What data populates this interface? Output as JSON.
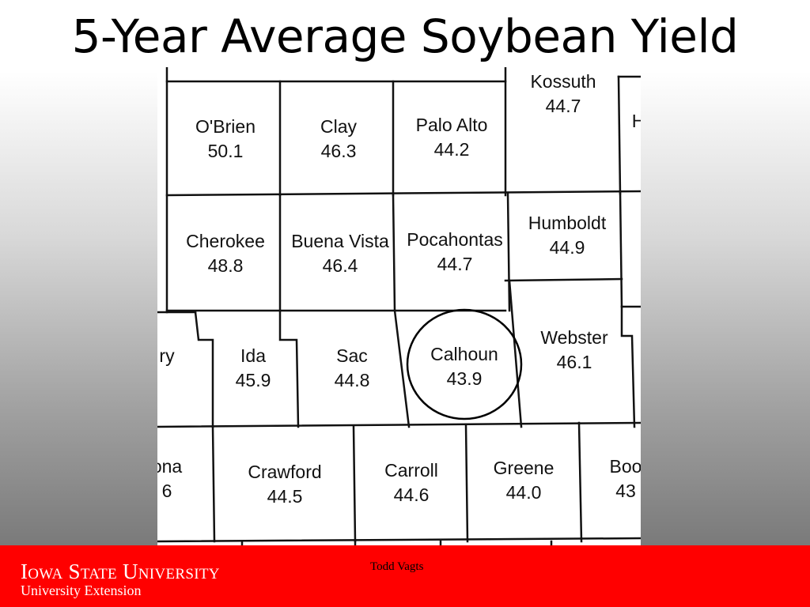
{
  "slide": {
    "title": "5-Year Average Soybean Yield",
    "author": "Todd Vagts"
  },
  "footer": {
    "university": "Iowa State University",
    "extension": "University Extension",
    "background_color": "#ff0000"
  },
  "map": {
    "highlighted_county": "Calhoun",
    "counties": [
      {
        "name": "Kossuth",
        "yield": "44.7"
      },
      {
        "name": "O'Brien",
        "yield": "50.1"
      },
      {
        "name": "Clay",
        "yield": "46.3"
      },
      {
        "name": "Palo Alto",
        "yield": "44.2"
      },
      {
        "name": "H",
        "yield": ""
      },
      {
        "name": "Cherokee",
        "yield": "48.8"
      },
      {
        "name": "Buena Vista",
        "yield": "46.4"
      },
      {
        "name": "Pocahontas",
        "yield": "44.7"
      },
      {
        "name": "Humboldt",
        "yield": "44.9"
      },
      {
        "name": "ry",
        "yield": ""
      },
      {
        "name": "Ida",
        "yield": "45.9"
      },
      {
        "name": "Sac",
        "yield": "44.8"
      },
      {
        "name": "Calhoun",
        "yield": "43.9"
      },
      {
        "name": "Webster",
        "yield": "46.1"
      },
      {
        "name": "ona",
        "yield": "6"
      },
      {
        "name": "Crawford",
        "yield": "44.5"
      },
      {
        "name": "Carroll",
        "yield": "44.6"
      },
      {
        "name": "Greene",
        "yield": "44.0"
      },
      {
        "name": "Boo",
        "yield": "43"
      }
    ]
  }
}
